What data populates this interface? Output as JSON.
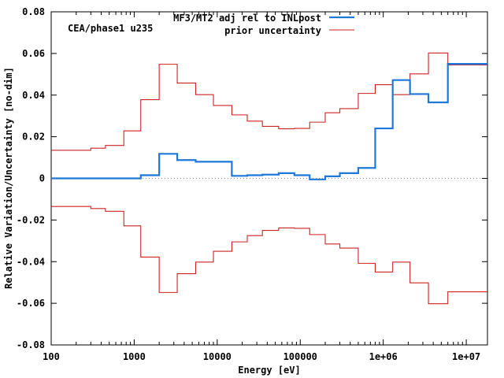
{
  "chart_data": {
    "type": "line",
    "title": "",
    "annotation": "CEA/phase1 u235",
    "xlabel": "Energy [eV]",
    "ylabel": "Relative Variation/Uncertainty [no-dim]",
    "xscale": "log",
    "xlim": [
      100,
      18000000
    ],
    "ylim": [
      -0.08,
      0.08
    ],
    "xticks": [
      {
        "value": 100,
        "label": "100"
      },
      {
        "value": 1000,
        "label": "1000"
      },
      {
        "value": 10000,
        "label": "10000"
      },
      {
        "value": 100000,
        "label": "100000"
      },
      {
        "value": 1000000,
        "label": "1e+06"
      },
      {
        "value": 10000000,
        "label": "1e+07"
      }
    ],
    "yticks": [
      {
        "value": -0.08,
        "label": "-0.08"
      },
      {
        "value": -0.06,
        "label": "-0.06"
      },
      {
        "value": -0.04,
        "label": "-0.04"
      },
      {
        "value": -0.02,
        "label": "-0.02"
      },
      {
        "value": 0,
        "label": "0"
      },
      {
        "value": 0.02,
        "label": "0.02"
      },
      {
        "value": 0.04,
        "label": "0.04"
      },
      {
        "value": 0.06,
        "label": "0.06"
      },
      {
        "value": 0.08,
        "label": "0.08"
      }
    ],
    "legend_position": "top-right",
    "edges": [
      100,
      300,
      450,
      750,
      1200,
      2000,
      3300,
      5500,
      9000,
      15000,
      23000,
      35000,
      55000,
      85000,
      130000,
      200000,
      300000,
      500000,
      800000,
      1300000,
      2100000,
      3500000,
      6000000,
      10000000,
      18000000
    ],
    "series": [
      {
        "name": "MF3/MT2 adj rel to INLpost",
        "color": "#1e78dc",
        "width": 2.2,
        "mirror": false,
        "values": [
          0.0,
          0.0,
          0.0,
          0.0,
          0.0015,
          0.0118,
          0.0088,
          0.008,
          0.008,
          0.0012,
          0.0015,
          0.0018,
          0.0025,
          0.0015,
          -0.0005,
          0.001,
          0.0025,
          0.005,
          0.024,
          0.0472,
          0.0405,
          0.0365,
          0.055,
          0.055
        ]
      },
      {
        "name": "prior uncertainty",
        "color": "#cc2222",
        "width": 1.1,
        "mirror": true,
        "values": [
          0.0135,
          0.0145,
          0.0158,
          0.0228,
          0.0378,
          0.0548,
          0.0458,
          0.0402,
          0.035,
          0.0305,
          0.0275,
          0.025,
          0.0238,
          0.024,
          0.027,
          0.0315,
          0.0335,
          0.0408,
          0.045,
          0.0402,
          0.0502,
          0.0602,
          0.0545,
          0.0545
        ]
      }
    ]
  }
}
